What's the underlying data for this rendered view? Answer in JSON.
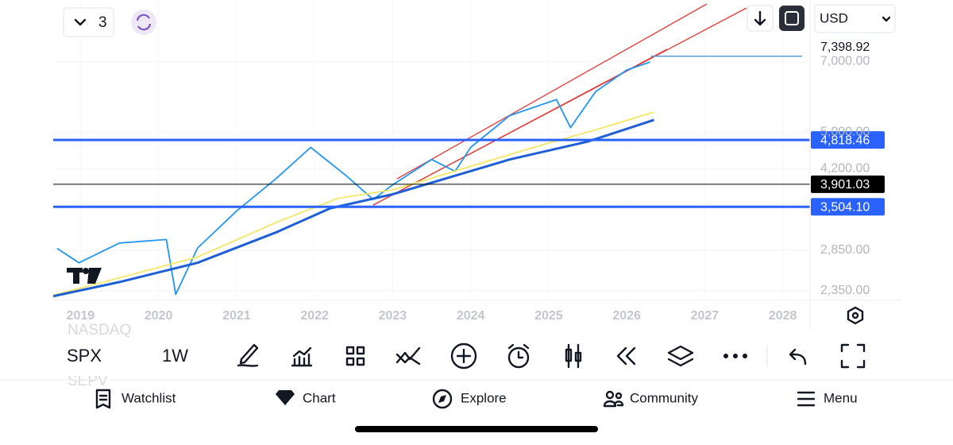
{
  "toolbar": {
    "layout_count": "3",
    "currency": "USD"
  },
  "chart_data": {
    "type": "line",
    "log_scale": true,
    "xlim": [
      2018.65,
      2028.35
    ],
    "xticks": [
      2019,
      2020,
      2021,
      2022,
      2023,
      2024,
      2025,
      2026,
      2027,
      2028
    ],
    "ylim": [
      2245,
      9380
    ],
    "yticks": [
      {
        "value": 2350,
        "label": "2,350.00"
      },
      {
        "value": 2850,
        "label": "2,850.00"
      },
      {
        "value": 4200,
        "label": "4,200.00"
      },
      {
        "value": 5000,
        "label": "5,000.00"
      },
      {
        "value": 7000,
        "label": "7,000.00"
      }
    ],
    "series": [
      {
        "color": "#2196f3",
        "x": [
          2018.7,
          2018.98,
          2019.5,
          2020.1,
          2020.22,
          2020.5,
          2021.0,
          2021.5,
          2021.95,
          2022.4,
          2022.75,
          2023.0,
          2023.5,
          2023.8,
          2024.0,
          2024.5,
          2025.1,
          2025.28,
          2025.6,
          2026.0,
          2026.3
        ],
        "values": [
          2875,
          2685,
          2950,
          3000,
          2310,
          2880,
          3435,
          4000,
          4650,
          4070,
          3630,
          3890,
          4390,
          4150,
          4650,
          5410,
          5840,
          5110,
          6060,
          6720,
          6980
        ]
      },
      {
        "color": "#f5e663",
        "x": [
          2018.65,
          2019.5,
          2020.5,
          2021.5,
          2022.3,
          2023.0,
          2024.0,
          2025.0,
          2025.5,
          2026.35
        ],
        "values": [
          2300,
          2500,
          2760,
          3250,
          3650,
          3800,
          4250,
          4750,
          5000,
          5500
        ]
      },
      {
        "color": "#1f5fd6",
        "x": [
          2018.65,
          2019.5,
          2020.5,
          2021.5,
          2022.2,
          2023.0,
          2024.5,
          2025.5,
          2026.35
        ],
        "values": [
          2290,
          2450,
          2685,
          3100,
          3480,
          3720,
          4390,
          4780,
          5300
        ]
      }
    ],
    "last_price": {
      "value": 7398.92,
      "label": "7,398.92"
    },
    "levels": [
      {
        "value": 4818.46,
        "label": "4,818.46",
        "color": "#2962ff"
      },
      {
        "value": 3901.03,
        "label": "3,901.03",
        "color": "#000000"
      },
      {
        "value": 3504.1,
        "label": "3,504.10",
        "color": "#2962ff"
      }
    ]
  },
  "watermark_symbols": [
    "NASDAQ",
    "SEPV"
  ],
  "bottom_toolbar": {
    "symbol": "SPX",
    "interval": "1W"
  },
  "nav": [
    "Watchlist",
    "Chart",
    "Explore",
    "Community",
    "Menu"
  ]
}
